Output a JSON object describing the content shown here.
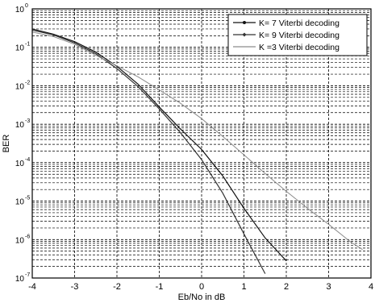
{
  "chart_data": {
    "type": "line",
    "title": "",
    "xlabel": "Eb/No in dB",
    "ylabel": "BER",
    "xlim": [
      -4,
      4
    ],
    "ylim": [
      1e-07,
      1
    ],
    "yscale": "log",
    "grid": true,
    "grid_style": "dashed",
    "legend_position": "top-right",
    "x_ticks": [
      "-4",
      "-3",
      "-2",
      "-1",
      "0",
      "1",
      "2",
      "3",
      "4"
    ],
    "y_ticks": [
      {
        "base": "10",
        "exp": "-7",
        "value": 1e-07
      },
      {
        "base": "10",
        "exp": "-6",
        "value": 1e-06
      },
      {
        "base": "10",
        "exp": "-5",
        "value": 1e-05
      },
      {
        "base": "10",
        "exp": "-4",
        "value": 0.0001
      },
      {
        "base": "10",
        "exp": "-3",
        "value": 0.001
      },
      {
        "base": "10",
        "exp": "-2",
        "value": 0.01
      },
      {
        "base": "10",
        "exp": "-1",
        "value": 0.1
      },
      {
        "base": "10",
        "exp": "0",
        "value": 1
      }
    ],
    "series": [
      {
        "name": "K= 7 Viterbi decoding",
        "color": "#111111",
        "marker": "dot",
        "x": [
          -4,
          -3.5,
          -3,
          -2.5,
          -2,
          -1.5,
          -1,
          -0.5,
          0,
          0.5,
          1,
          1.5,
          2
        ],
        "y": [
          0.3,
          0.22,
          0.14,
          0.075,
          0.032,
          0.011,
          0.0028,
          0.00075,
          0.00022,
          4.5e-05,
          6.5e-06,
          1.1e-06,
          2.8e-07
        ]
      },
      {
        "name": "K= 9 Viterbi decoding",
        "color": "#333333",
        "marker": "diamond",
        "x": [
          -4,
          -3.5,
          -3,
          -2.5,
          -2,
          -1.5,
          -1,
          -0.5,
          0,
          0.5,
          1,
          1.5
        ],
        "y": [
          0.28,
          0.21,
          0.13,
          0.068,
          0.028,
          0.0095,
          0.0025,
          0.0006,
          0.00012,
          1.6e-05,
          1.4e-06,
          1.3e-07
        ]
      },
      {
        "name": "K =3 Viterbi decoding",
        "color": "#8c8c8c",
        "marker": "none",
        "x": [
          -4,
          -3.5,
          -3,
          -2.5,
          -2,
          -1.5,
          -1,
          -0.5,
          0,
          0.5,
          1,
          1.5,
          2,
          2.5,
          3,
          3.5,
          3.8
        ],
        "y": [
          0.25,
          0.19,
          0.12,
          0.062,
          0.033,
          0.017,
          0.0078,
          0.0035,
          0.0014,
          0.00048,
          0.00016,
          5.2e-05,
          1.8e-05,
          6.5e-06,
          2.5e-06,
          9e-07,
          5.5e-07
        ]
      }
    ]
  }
}
